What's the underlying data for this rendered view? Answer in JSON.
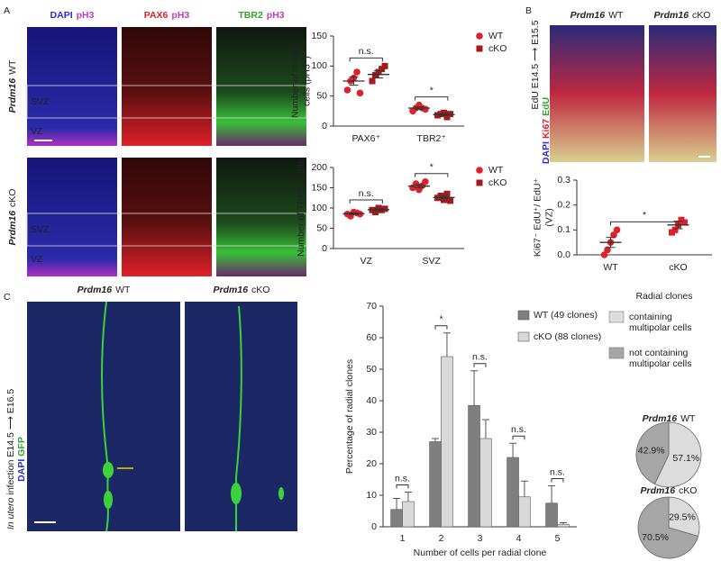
{
  "panel_labels": [
    "A",
    "B",
    "C"
  ],
  "figure_a": {
    "stains": [
      [
        {
          "text": "DAPI",
          "color": "#2b2bd6"
        },
        {
          "text": "pH3",
          "color": "#c23cc2"
        }
      ],
      [
        {
          "text": "PAX6",
          "color": "#e0202a"
        },
        {
          "text": "pH3",
          "color": "#c23cc2"
        }
      ],
      [
        {
          "text": "TBR2",
          "color": "#2fa52f"
        },
        {
          "text": "pH3",
          "color": "#c23cc2"
        }
      ]
    ],
    "genotypes": [
      [
        "Prdm16",
        "WT"
      ],
      [
        "Prdm16",
        "cKO"
      ]
    ],
    "zones": [
      "SVZ",
      "VZ"
    ]
  },
  "figure_b": {
    "genotypes": [
      [
        "Prdm16",
        "WT"
      ],
      [
        "Prdm16",
        "cKO"
      ]
    ],
    "side": "EdU E14.5 ⟶ E15.5",
    "stains": [
      {
        "text": "DAPI",
        "color": "#2b2bd6"
      },
      {
        "text": "Ki67",
        "color": "#e0202a"
      },
      {
        "text": "EdU",
        "color": "#2fa52f"
      }
    ]
  },
  "figure_c": {
    "genotypes": [
      [
        "Prdm16",
        "WT"
      ],
      [
        "Prdm16",
        "cKO"
      ]
    ],
    "side": [
      "In utero",
      " infection E14.5 ⟶ E16.5"
    ],
    "stains": [
      {
        "text": "DAPI",
        "color": "#2b2bd6"
      },
      {
        "text": "GFP",
        "color": "#2fa52f"
      }
    ]
  },
  "chart_data": [
    {
      "type": "dotplot",
      "ylabel": [
        "Number of mitotic",
        "cells (pH3⁺)"
      ],
      "categories": [
        "PAX6⁺",
        "TBR2⁺"
      ],
      "ylim": [
        0,
        150
      ],
      "yticks": [
        0,
        50,
        100,
        150
      ],
      "significance": [
        "n.s.",
        "*"
      ],
      "series": [
        {
          "name": "WT",
          "color": "#e0202a",
          "marker": "circle",
          "values": [
            [
              60,
              75,
              80,
              90,
              55
            ],
            [
              25,
              30,
              35,
              30,
              28
            ]
          ],
          "mean": [
            75,
            30
          ],
          "sem": [
            7,
            2
          ]
        },
        {
          "name": "cKO",
          "color": "#a31b1b",
          "marker": "square",
          "values": [
            [
              75,
              85,
              90,
              95,
              100
            ],
            [
              18,
              20,
              22,
              15,
              20
            ]
          ],
          "mean": [
            86,
            19
          ],
          "sem": [
            6,
            1.5
          ]
        }
      ]
    },
    {
      "type": "dotplot",
      "ylabel": [
        "Number of TBR2⁺ cells"
      ],
      "categories": [
        "VZ",
        "SVZ"
      ],
      "ylim": [
        0,
        200
      ],
      "yticks": [
        0,
        50,
        100,
        150,
        200
      ],
      "significance": [
        "n.s.",
        "*"
      ],
      "series": [
        {
          "name": "WT",
          "color": "#e0202a",
          "marker": "circle",
          "values": [
            [
              85,
              80,
              90,
              88,
              85
            ],
            [
              150,
              160,
              145,
              155,
              165
            ]
          ],
          "mean": [
            86,
            154
          ],
          "sem": [
            2,
            4
          ]
        },
        {
          "name": "cKO",
          "color": "#a31b1b",
          "marker": "square",
          "values": [
            [
              95,
              90,
              100,
              95,
              98
            ],
            [
              125,
              130,
              120,
              135,
              118
            ]
          ],
          "mean": [
            96,
            126
          ],
          "sem": [
            2,
            3
          ]
        }
      ]
    },
    {
      "type": "dotplot",
      "ylabel": [
        "Ki67⁻ EdU⁺/ EdU⁺",
        "(VZ)"
      ],
      "categories": [
        "WT",
        "cKO"
      ],
      "ylim": [
        0,
        0.3
      ],
      "yticks": [
        {
          "value": 0,
          "label": "0.0"
        },
        0.1,
        0.2,
        0.3
      ],
      "significance": [
        "*"
      ],
      "series": [
        {
          "color": "#e0202a",
          "marker": [
            "circle",
            "square"
          ],
          "values": [
            [
              0.0,
              0.02,
              0.05,
              0.08,
              0.1
            ],
            [
              0.09,
              0.1,
              0.12,
              0.14,
              0.13
            ]
          ],
          "mean": [
            0.05,
            0.12
          ],
          "sem": [
            0.02,
            0.015
          ]
        }
      ]
    },
    {
      "type": "bar",
      "ylabel": "Percentage of radial clones",
      "xlabel": "Number of cells per radial clone",
      "categories": [
        "1",
        "2",
        "3",
        "4",
        "5"
      ],
      "ylim": [
        0,
        70
      ],
      "yticks": [
        0,
        10,
        20,
        30,
        40,
        50,
        60,
        70
      ],
      "significance": [
        "n.s.",
        "*",
        "n.s.",
        "n.s.",
        "n.s."
      ],
      "series": [
        {
          "name": "WT (49 clones)",
          "color": "#7f7f7f",
          "values": [
            5.5,
            27,
            38.5,
            22,
            7.5
          ],
          "errors": [
            3.5,
            1,
            11,
            4.5,
            5.5
          ]
        },
        {
          "name": "cKO (88 clones)",
          "color": "#d9d9d9",
          "values": [
            8,
            54,
            28,
            9.5,
            0.8
          ],
          "errors": [
            3,
            7.5,
            6,
            5,
            0.5
          ]
        }
      ]
    },
    {
      "type": "pie",
      "title": "Radial clones",
      "labels": [
        [
          "containing",
          "multipolar cells"
        ],
        [
          "not containing",
          "multipolar cells"
        ]
      ],
      "colors": [
        "#dcdcdc",
        "#a6a6a6"
      ],
      "pies": [
        {
          "title": [
            "Prdm16",
            "WT"
          ],
          "values": [
            57.1,
            42.9
          ],
          "value_labels": [
            "57.1%",
            "42.9%"
          ]
        },
        {
          "title": [
            "Prdm16",
            "cKO"
          ],
          "values": [
            29.5,
            70.5
          ],
          "value_labels": [
            "29.5%",
            "70.5%"
          ]
        }
      ]
    }
  ]
}
